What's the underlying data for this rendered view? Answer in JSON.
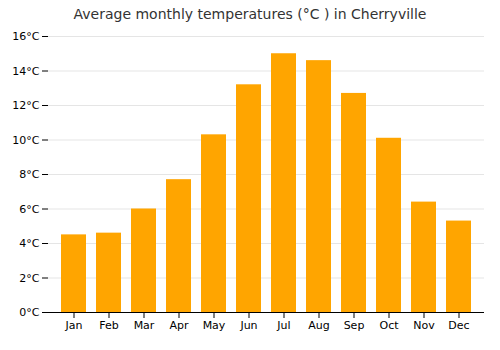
{
  "chart_data": {
    "type": "bar",
    "title": "Average monthly temperatures (°C ) in Cherryville",
    "categories": [
      "Jan",
      "Feb",
      "Mar",
      "Apr",
      "May",
      "Jun",
      "Jul",
      "Aug",
      "Sep",
      "Oct",
      "Nov",
      "Dec"
    ],
    "values": [
      4.5,
      4.6,
      6.0,
      7.7,
      10.3,
      13.2,
      15.0,
      14.6,
      12.7,
      10.1,
      6.4,
      5.3
    ],
    "color": "#FFA500",
    "ylim": [
      0,
      16
    ],
    "yticks": [
      {
        "value": 0,
        "label": "0°C"
      },
      {
        "value": 2,
        "label": "2°C"
      },
      {
        "value": 4,
        "label": "4°C"
      },
      {
        "value": 6,
        "label": "6°C"
      },
      {
        "value": 8,
        "label": "8°C"
      },
      {
        "value": 10,
        "label": "10°C"
      },
      {
        "value": 12,
        "label": "12°C"
      },
      {
        "value": 14,
        "label": "14°C"
      },
      {
        "value": 16,
        "label": "16°C"
      }
    ],
    "grid": true
  }
}
